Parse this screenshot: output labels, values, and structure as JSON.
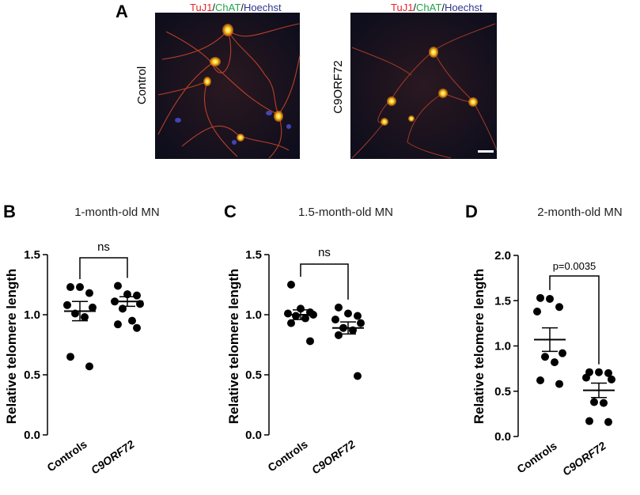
{
  "panel_a": {
    "letter": "A",
    "images": [
      {
        "condition": "Control",
        "stain_parts": [
          {
            "text": "TuJ1",
            "color": "#e8252b"
          },
          {
            "text": "/",
            "color": "#111111"
          },
          {
            "text": "ChAT",
            "color": "#22a34a"
          },
          {
            "text": "/",
            "color": "#111111"
          },
          {
            "text": "Hoechst",
            "color": "#2f3590"
          }
        ]
      },
      {
        "condition": "C9ORF72",
        "stain_parts": [
          {
            "text": "TuJ1",
            "color": "#e8252b"
          },
          {
            "text": "/",
            "color": "#111111"
          },
          {
            "text": "ChAT",
            "color": "#22a34a"
          },
          {
            "text": "/",
            "color": "#111111"
          },
          {
            "text": "Hoechst",
            "color": "#2f3590"
          }
        ]
      }
    ]
  },
  "chart_data": [
    {
      "panel": "B",
      "type": "scatter",
      "title": "1-month-old MN",
      "ylabel": "Relative telomere length",
      "categories": [
        "Controls",
        "C9ORF72"
      ],
      "ylim": [
        0,
        1.5
      ],
      "yticks": [
        {
          "value": 0,
          "label": "0.0"
        },
        {
          "value": 0.5,
          "label": "0.5"
        },
        {
          "value": 1.0,
          "label": "1.0"
        },
        {
          "value": 1.5,
          "label": "1.5"
        }
      ],
      "series": [
        {
          "category": "Controls",
          "values": [
            1.23,
            1.23,
            1.18,
            1.08,
            1.06,
            1.01,
            0.98,
            0.65,
            0.57
          ],
          "mean": 1.03,
          "sem": 0.08
        },
        {
          "category": "C9ORF72",
          "values": [
            1.24,
            1.17,
            1.16,
            1.11,
            1.09,
            1.05,
            0.95,
            0.92,
            0.89
          ],
          "mean": 1.11,
          "sem": 0.04
        }
      ],
      "comparison": {
        "label": "ns"
      }
    },
    {
      "panel": "C",
      "type": "scatter",
      "title": "1.5-month-old MN",
      "ylabel": "Relative telomere length",
      "categories": [
        "Controls",
        "C9ORF72"
      ],
      "ylim": [
        0,
        1.5
      ],
      "yticks": [
        {
          "value": 0,
          "label": "0.0"
        },
        {
          "value": 0.5,
          "label": "0.5"
        },
        {
          "value": 1.0,
          "label": "1.0"
        },
        {
          "value": 1.5,
          "label": "1.5"
        }
      ],
      "series": [
        {
          "category": "Controls",
          "values": [
            1.25,
            1.05,
            1.02,
            1.01,
            1.0,
            0.99,
            0.97,
            0.93,
            0.78
          ],
          "mean": 1.0,
          "sem": 0.04
        },
        {
          "category": "C9ORF72",
          "values": [
            1.06,
            1.01,
            0.99,
            0.96,
            0.93,
            0.89,
            0.87,
            0.83,
            0.49
          ],
          "mean": 0.89,
          "sem": 0.05
        }
      ],
      "comparison": {
        "label": "ns"
      }
    },
    {
      "panel": "D",
      "type": "scatter",
      "title": "2-month-old MN",
      "ylabel": "Relative telomere length",
      "categories": [
        "Controls",
        "C9ORF72"
      ],
      "ylim": [
        0,
        2.0
      ],
      "yticks": [
        {
          "value": 0,
          "label": "0.0"
        },
        {
          "value": 0.5,
          "label": "0.5"
        },
        {
          "value": 1.0,
          "label": "1.0"
        },
        {
          "value": 1.5,
          "label": "1.5"
        },
        {
          "value": 2.0,
          "label": "2.0"
        }
      ],
      "series": [
        {
          "category": "Controls",
          "values": [
            1.53,
            1.52,
            1.43,
            1.38,
            0.92,
            0.88,
            0.82,
            0.62,
            0.58
          ],
          "mean": 1.07,
          "sem": 0.13
        },
        {
          "category": "C9ORF72",
          "values": [
            0.71,
            0.71,
            0.7,
            0.65,
            0.63,
            0.38,
            0.37,
            0.17,
            0.16
          ],
          "mean": 0.51,
          "sem": 0.08
        }
      ],
      "comparison": {
        "label": "p=0.0035"
      }
    }
  ]
}
